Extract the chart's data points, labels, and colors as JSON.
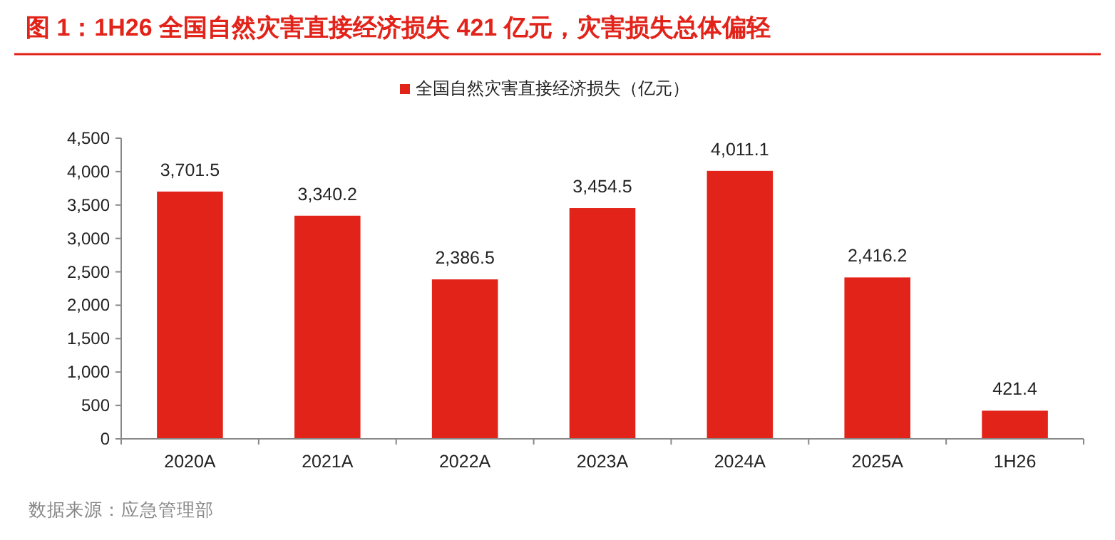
{
  "chart_data": {
    "type": "bar",
    "title": "图 1：1H26 全国自然灾害直接经济损失 421 亿元，灾害损失总体偏轻",
    "categories": [
      "2020A",
      "2021A",
      "2022A",
      "2023A",
      "2024A",
      "2025A",
      "1H26"
    ],
    "series": [
      {
        "name": "全国自然灾害直接经济损失（亿元）",
        "color": "#e2231a",
        "values": [
          3701.5,
          3340.2,
          2386.5,
          3454.5,
          4011.1,
          2416.2,
          421.4
        ],
        "value_labels": [
          "3,701.5",
          "3,340.2",
          "2,386.5",
          "3,454.5",
          "4,011.1",
          "2,416.2",
          "421.4"
        ]
      }
    ],
    "ylim": [
      0,
      4500
    ],
    "yticks": [
      0,
      500,
      {
        "value": 1000,
        "label": "1,000"
      },
      {
        "value": 1500,
        "label": "1,500"
      },
      {
        "value": 2000,
        "label": "2,000"
      },
      {
        "value": 2500,
        "label": "2,500"
      },
      {
        "value": 3000,
        "label": "3,000"
      },
      {
        "value": 3500,
        "label": "3,500"
      },
      {
        "value": 4000,
        "label": "4,000"
      },
      {
        "value": 4500,
        "label": "4,500"
      }
    ],
    "legend": "top",
    "annotations": [
      "数据来源：应急管理部"
    ]
  }
}
